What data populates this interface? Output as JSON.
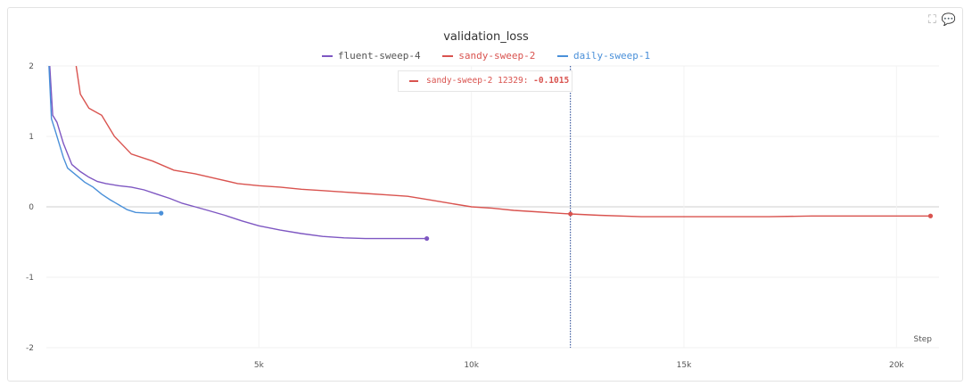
{
  "panel": {
    "icons": [
      "expand-icon",
      "comment-icon"
    ]
  },
  "chart_data": {
    "type": "line",
    "title": "validation_loss",
    "xlabel": "Step",
    "ylabel": "",
    "xlim": [
      0,
      21000
    ],
    "ylim": [
      -2,
      2
    ],
    "x_ticks": [
      5000,
      10000,
      15000,
      20000
    ],
    "x_tick_labels": [
      "5k",
      "10k",
      "15k",
      "20k"
    ],
    "y_ticks": [
      -2,
      -1,
      0,
      1,
      2
    ],
    "y_tick_labels": [
      "-2",
      "-1",
      "0",
      "1",
      "2"
    ],
    "grid": true,
    "legend_position": "top",
    "hover_step": 12329,
    "tooltip": {
      "series": "sandy-sweep-2",
      "step": "12329:",
      "value": "-0.1015"
    },
    "series": [
      {
        "name": "fluent-sweep-4",
        "color": "#7e57c2",
        "points": [
          [
            0,
            6
          ],
          [
            80,
            2.0
          ],
          [
            150,
            1.3
          ],
          [
            250,
            1.2
          ],
          [
            400,
            0.9
          ],
          [
            600,
            0.6
          ],
          [
            800,
            0.5
          ],
          [
            1000,
            0.42
          ],
          [
            1200,
            0.36
          ],
          [
            1400,
            0.33
          ],
          [
            1700,
            0.3
          ],
          [
            2000,
            0.28
          ],
          [
            2300,
            0.24
          ],
          [
            2600,
            0.18
          ],
          [
            2900,
            0.12
          ],
          [
            3200,
            0.05
          ],
          [
            3500,
            0.0
          ],
          [
            3800,
            -0.05
          ],
          [
            4200,
            -0.12
          ],
          [
            4600,
            -0.2
          ],
          [
            5000,
            -0.27
          ],
          [
            5500,
            -0.33
          ],
          [
            6000,
            -0.38
          ],
          [
            6500,
            -0.42
          ],
          [
            7000,
            -0.44
          ],
          [
            7500,
            -0.45
          ],
          [
            8000,
            -0.45
          ],
          [
            8500,
            -0.45
          ],
          [
            8950,
            -0.45
          ]
        ]
      },
      {
        "name": "sandy-sweep-2",
        "color": "#d9534f",
        "points": [
          [
            700,
            2.0
          ],
          [
            800,
            1.6
          ],
          [
            1000,
            1.4
          ],
          [
            1300,
            1.3
          ],
          [
            1600,
            1.0
          ],
          [
            2000,
            0.75
          ],
          [
            2500,
            0.65
          ],
          [
            3000,
            0.52
          ],
          [
            3500,
            0.47
          ],
          [
            4000,
            0.4
          ],
          [
            4500,
            0.33
          ],
          [
            5000,
            0.3
          ],
          [
            5500,
            0.28
          ],
          [
            6000,
            0.25
          ],
          [
            6500,
            0.23
          ],
          [
            7000,
            0.21
          ],
          [
            7500,
            0.19
          ],
          [
            8000,
            0.17
          ],
          [
            8500,
            0.15
          ],
          [
            9000,
            0.1
          ],
          [
            9500,
            0.05
          ],
          [
            10000,
            0.0
          ],
          [
            10500,
            -0.02
          ],
          [
            11000,
            -0.05
          ],
          [
            11500,
            -0.07
          ],
          [
            12000,
            -0.09
          ],
          [
            12329,
            -0.1015
          ],
          [
            13000,
            -0.12
          ],
          [
            14000,
            -0.14
          ],
          [
            15000,
            -0.14
          ],
          [
            16000,
            -0.14
          ],
          [
            17000,
            -0.14
          ],
          [
            18000,
            -0.13
          ],
          [
            19000,
            -0.13
          ],
          [
            20000,
            -0.13
          ],
          [
            20800,
            -0.13
          ]
        ]
      },
      {
        "name": "daily-sweep-1",
        "color": "#4a90d9",
        "points": [
          [
            0,
            6
          ],
          [
            60,
            2.0
          ],
          [
            120,
            1.25
          ],
          [
            200,
            1.1
          ],
          [
            300,
            0.9
          ],
          [
            400,
            0.7
          ],
          [
            500,
            0.55
          ],
          [
            700,
            0.45
          ],
          [
            900,
            0.35
          ],
          [
            1100,
            0.28
          ],
          [
            1300,
            0.18
          ],
          [
            1500,
            0.1
          ],
          [
            1700,
            0.03
          ],
          [
            1900,
            -0.04
          ],
          [
            2100,
            -0.08
          ],
          [
            2400,
            -0.09
          ],
          [
            2700,
            -0.09
          ]
        ]
      }
    ]
  }
}
